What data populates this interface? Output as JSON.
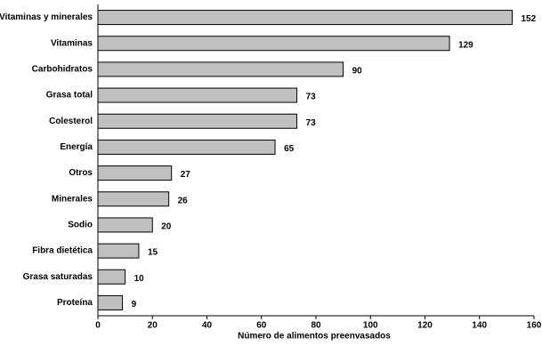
{
  "chart_data": {
    "type": "hbar",
    "x_label": "Número de alimentos preenvasados",
    "categories": [
      "Vitaminas y minerales",
      "Vitaminas",
      "Carbohidratos",
      "Grasa total",
      "Colesterol",
      "Energía",
      "Otros",
      "Minerales",
      "Sodio",
      "Fibra dietética",
      "Grasa saturadas",
      "Proteína"
    ],
    "values": [
      152,
      129,
      90,
      73,
      73,
      65,
      27,
      26,
      20,
      15,
      10,
      9
    ],
    "color": "#c0c0c0",
    "xlim": [
      0,
      160
    ],
    "xticks": [
      0,
      20,
      40,
      60,
      80,
      100,
      120,
      140,
      160
    ]
  }
}
